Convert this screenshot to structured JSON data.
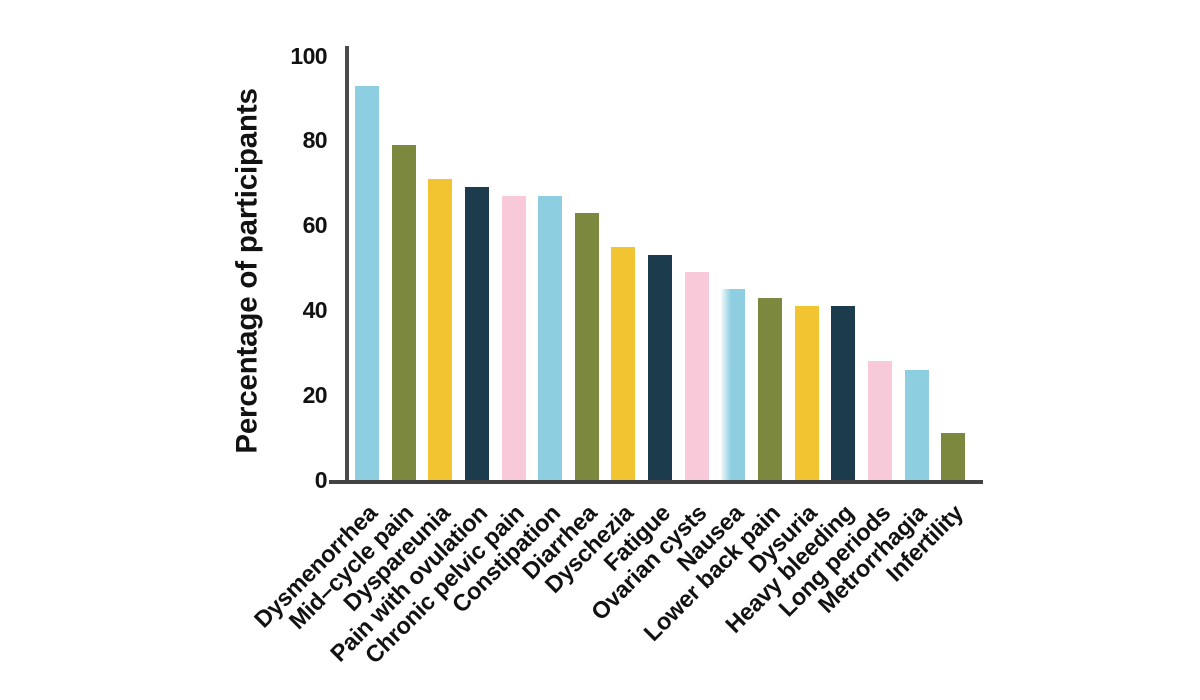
{
  "chart_data": {
    "type": "bar",
    "title": "",
    "xlabel": "",
    "ylabel": "Percentage of participants",
    "ylim": [
      0,
      100
    ],
    "yticks": [
      0,
      20,
      40,
      60,
      80,
      100
    ],
    "grid": false,
    "legend": false,
    "categories": [
      "Dysmenorrhea",
      "Mid–cycle pain",
      "Dyspareunia",
      "Pain with ovulation",
      "Chronic pelvic pain",
      "Constipation",
      "Diarrhea",
      "Dyschezia",
      "Fatigue",
      "Ovarian cysts",
      "Nausea",
      "Lower back pain",
      "Dysuria",
      "Heavy bleeding",
      "Long periods",
      "Metrorrhagia",
      "Infertility"
    ],
    "values": [
      93,
      79,
      71,
      69,
      67,
      67,
      63,
      55,
      53,
      49,
      45,
      43,
      41,
      41,
      28,
      26,
      11
    ],
    "palette": [
      "#8dcfe0",
      "#7c883d",
      "#f2c431",
      "#1c3b4d",
      "#f8cad9"
    ],
    "axis_color": "#4a4a4a",
    "text_color": "#121212",
    "faded_bar": "Nausea"
  }
}
